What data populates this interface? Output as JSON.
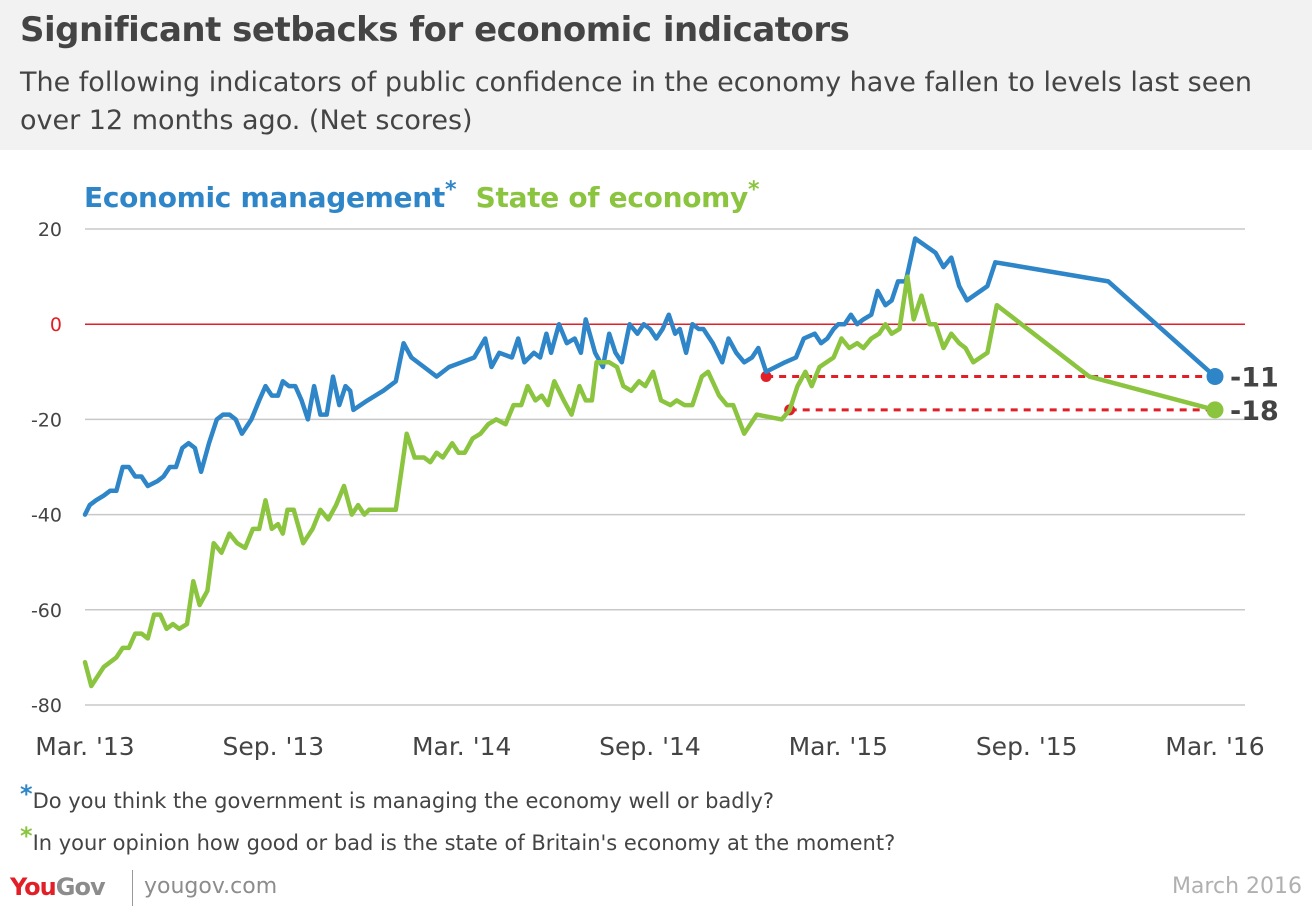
{
  "header": {
    "title": "Significant setbacks for economic indicators",
    "subtitle": "The following indicators of public confidence in the economy have fallen to levels last seen over 12 months ago. (Net scores)"
  },
  "legend": {
    "series1": "Economic management",
    "series2": "State of economy",
    "asterisk": "*"
  },
  "footnotes": [
    {
      "marker": "*",
      "text": "Do you think the government is managing the economy well or badly?",
      "color": "#2e86c8"
    },
    {
      "marker": "*",
      "text": "In your opinion how good or bad is the state of Britain's economy at the moment?",
      "color": "#8bc43f"
    }
  ],
  "footer": {
    "brand_you": "You",
    "brand_gov": "Gov",
    "url": "yougov.com",
    "date": "March 2016"
  },
  "colors": {
    "economic_management": "#2e86c8",
    "state_of_economy": "#8bc43f",
    "zero_line": "#e21e26",
    "reference": "#e21e26",
    "grid": "#c8c8c8"
  },
  "chart_data": {
    "type": "line",
    "title": "Significant setbacks for economic indicators",
    "xlabel": "",
    "ylabel": "Net score",
    "ylim": [
      -80,
      20
    ],
    "yticks": [
      20,
      0,
      -20,
      -40,
      -60,
      -80
    ],
    "x_unit": "months since Mar 2013",
    "xlim": [
      0,
      36
    ],
    "xticks": [
      {
        "x": 0,
        "label": "Mar. '13"
      },
      {
        "x": 6,
        "label": "Sep. '13"
      },
      {
        "x": 12,
        "label": "Mar. '14"
      },
      {
        "x": 18,
        "label": "Sep. '14"
      },
      {
        "x": 24,
        "label": "Mar. '15"
      },
      {
        "x": 30,
        "label": "Sep. '15"
      },
      {
        "x": 36,
        "label": "Mar. '16"
      }
    ],
    "grid": true,
    "zero_line": true,
    "series": [
      {
        "name": "Economic management",
        "color": "#2e86c8",
        "points": [
          [
            0,
            -40
          ],
          [
            0.15,
            -38
          ],
          [
            0.35,
            -37
          ],
          [
            0.6,
            -36
          ],
          [
            0.8,
            -35
          ],
          [
            1.0,
            -35
          ],
          [
            1.2,
            -30
          ],
          [
            1.4,
            -30
          ],
          [
            1.6,
            -32
          ],
          [
            1.8,
            -32
          ],
          [
            2.0,
            -34
          ],
          [
            2.3,
            -33
          ],
          [
            2.5,
            -32
          ],
          [
            2.7,
            -30
          ],
          [
            2.9,
            -30
          ],
          [
            3.1,
            -26
          ],
          [
            3.3,
            -25
          ],
          [
            3.5,
            -26
          ],
          [
            3.7,
            -31
          ],
          [
            3.95,
            -25
          ],
          [
            4.2,
            -20
          ],
          [
            4.4,
            -19
          ],
          [
            4.6,
            -19
          ],
          [
            4.8,
            -20
          ],
          [
            5.0,
            -23
          ],
          [
            5.3,
            -20
          ],
          [
            5.55,
            -16
          ],
          [
            5.75,
            -13
          ],
          [
            5.95,
            -15
          ],
          [
            6.15,
            -15
          ],
          [
            6.3,
            -12
          ],
          [
            6.5,
            -13
          ],
          [
            6.7,
            -13
          ],
          [
            6.9,
            -16
          ],
          [
            7.1,
            -20
          ],
          [
            7.3,
            -13
          ],
          [
            7.5,
            -19
          ],
          [
            7.7,
            -19
          ],
          [
            7.9,
            -11
          ],
          [
            8.1,
            -17
          ],
          [
            8.3,
            -13
          ],
          [
            8.45,
            -14
          ],
          [
            8.55,
            -18
          ],
          [
            9.0,
            -16
          ],
          [
            9.5,
            -14
          ],
          [
            9.9,
            -12
          ],
          [
            10.15,
            -4
          ],
          [
            10.4,
            -7
          ],
          [
            10.8,
            -9
          ],
          [
            11.2,
            -11
          ],
          [
            11.6,
            -9
          ],
          [
            12.0,
            -8
          ],
          [
            12.4,
            -7
          ],
          [
            12.75,
            -3
          ],
          [
            12.95,
            -9
          ],
          [
            13.2,
            -6
          ],
          [
            13.6,
            -7
          ],
          [
            13.8,
            -3
          ],
          [
            14.0,
            -8
          ],
          [
            14.3,
            -6
          ],
          [
            14.5,
            -7
          ],
          [
            14.7,
            -2
          ],
          [
            14.85,
            -6
          ],
          [
            15.1,
            0
          ],
          [
            15.35,
            -4
          ],
          [
            15.6,
            -3
          ],
          [
            15.8,
            -6
          ],
          [
            15.95,
            1
          ],
          [
            16.25,
            -6
          ],
          [
            16.5,
            -9
          ],
          [
            16.7,
            -2
          ],
          [
            16.9,
            -6
          ],
          [
            17.1,
            -8
          ],
          [
            17.35,
            0
          ],
          [
            17.6,
            -2
          ],
          [
            17.8,
            0
          ],
          [
            18.0,
            -1
          ],
          [
            18.2,
            -3
          ],
          [
            18.4,
            -1
          ],
          [
            18.6,
            2
          ],
          [
            18.8,
            -2
          ],
          [
            18.95,
            -1
          ],
          [
            19.15,
            -6
          ],
          [
            19.35,
            0
          ],
          [
            19.55,
            -1
          ],
          [
            19.7,
            -1
          ],
          [
            20.0,
            -4
          ],
          [
            20.3,
            -8
          ],
          [
            20.5,
            -3
          ],
          [
            20.75,
            -6
          ],
          [
            21.0,
            -8
          ],
          [
            21.25,
            -7
          ],
          [
            21.45,
            -5
          ],
          [
            21.7,
            -10
          ],
          [
            22.3,
            -8
          ],
          [
            22.65,
            -7
          ],
          [
            22.9,
            -3
          ],
          [
            23.25,
            -2
          ],
          [
            23.45,
            -4
          ],
          [
            23.65,
            -3
          ],
          [
            23.85,
            -1
          ],
          [
            24.0,
            0
          ],
          [
            24.2,
            0
          ],
          [
            24.4,
            2
          ],
          [
            24.6,
            0
          ],
          [
            24.8,
            1
          ],
          [
            25.05,
            2
          ],
          [
            25.25,
            7
          ],
          [
            25.5,
            4
          ],
          [
            25.7,
            5
          ],
          [
            25.9,
            9
          ],
          [
            26.15,
            9
          ],
          [
            26.45,
            18
          ],
          [
            27.1,
            15
          ],
          [
            27.35,
            12
          ],
          [
            27.6,
            14
          ],
          [
            27.85,
            8
          ],
          [
            28.1,
            5
          ],
          [
            28.75,
            8
          ],
          [
            29.0,
            13
          ],
          [
            32.6,
            9
          ],
          [
            36,
            -11
          ]
        ]
      },
      {
        "name": "State of economy",
        "color": "#8bc43f",
        "points": [
          [
            0,
            -71
          ],
          [
            0.2,
            -76
          ],
          [
            0.4,
            -74
          ],
          [
            0.6,
            -72
          ],
          [
            0.8,
            -71
          ],
          [
            1.0,
            -70
          ],
          [
            1.2,
            -68
          ],
          [
            1.4,
            -68
          ],
          [
            1.6,
            -65
          ],
          [
            1.8,
            -65
          ],
          [
            2.0,
            -66
          ],
          [
            2.2,
            -61
          ],
          [
            2.4,
            -61
          ],
          [
            2.6,
            -64
          ],
          [
            2.8,
            -63
          ],
          [
            3.0,
            -64
          ],
          [
            3.25,
            -63
          ],
          [
            3.45,
            -54
          ],
          [
            3.65,
            -59
          ],
          [
            3.9,
            -56
          ],
          [
            4.1,
            -46
          ],
          [
            4.35,
            -48
          ],
          [
            4.6,
            -44
          ],
          [
            4.85,
            -46
          ],
          [
            5.1,
            -47
          ],
          [
            5.35,
            -43
          ],
          [
            5.55,
            -43
          ],
          [
            5.75,
            -37
          ],
          [
            5.95,
            -43
          ],
          [
            6.15,
            -42
          ],
          [
            6.3,
            -44
          ],
          [
            6.45,
            -39
          ],
          [
            6.65,
            -39
          ],
          [
            6.95,
            -46
          ],
          [
            7.25,
            -43
          ],
          [
            7.5,
            -39
          ],
          [
            7.75,
            -41
          ],
          [
            8.0,
            -38
          ],
          [
            8.25,
            -34
          ],
          [
            8.5,
            -40
          ],
          [
            8.7,
            -38
          ],
          [
            8.9,
            -40
          ],
          [
            9.05,
            -39
          ],
          [
            9.9,
            -39
          ],
          [
            10.25,
            -23
          ],
          [
            10.5,
            -28
          ],
          [
            10.8,
            -28
          ],
          [
            11.0,
            -29
          ],
          [
            11.2,
            -27
          ],
          [
            11.4,
            -28
          ],
          [
            11.7,
            -25
          ],
          [
            11.9,
            -27
          ],
          [
            12.1,
            -27
          ],
          [
            12.35,
            -24
          ],
          [
            12.6,
            -23
          ],
          [
            12.85,
            -21
          ],
          [
            13.1,
            -20
          ],
          [
            13.4,
            -21
          ],
          [
            13.65,
            -17
          ],
          [
            13.9,
            -17
          ],
          [
            14.1,
            -13
          ],
          [
            14.35,
            -16
          ],
          [
            14.55,
            -15
          ],
          [
            14.75,
            -17
          ],
          [
            14.95,
            -12
          ],
          [
            15.25,
            -16
          ],
          [
            15.5,
            -19
          ],
          [
            15.75,
            -13
          ],
          [
            15.95,
            -16
          ],
          [
            16.15,
            -16
          ],
          [
            16.3,
            -8
          ],
          [
            16.7,
            -8
          ],
          [
            16.95,
            -9
          ],
          [
            17.15,
            -13
          ],
          [
            17.4,
            -14
          ],
          [
            17.65,
            -12
          ],
          [
            17.85,
            -13
          ],
          [
            18.1,
            -10
          ],
          [
            18.35,
            -16
          ],
          [
            18.65,
            -17
          ],
          [
            18.85,
            -16
          ],
          [
            19.1,
            -17
          ],
          [
            19.35,
            -17
          ],
          [
            19.65,
            -11
          ],
          [
            19.85,
            -10
          ],
          [
            20.2,
            -15
          ],
          [
            20.45,
            -17
          ],
          [
            20.65,
            -17
          ],
          [
            21.0,
            -23
          ],
          [
            21.4,
            -19
          ],
          [
            22.2,
            -20
          ],
          [
            22.45,
            -18
          ],
          [
            22.7,
            -13
          ],
          [
            22.95,
            -10
          ],
          [
            23.15,
            -13
          ],
          [
            23.4,
            -9
          ],
          [
            23.85,
            -7
          ],
          [
            24.1,
            -3
          ],
          [
            24.35,
            -5
          ],
          [
            24.6,
            -4
          ],
          [
            24.8,
            -5
          ],
          [
            25.05,
            -3
          ],
          [
            25.3,
            -2
          ],
          [
            25.5,
            0
          ],
          [
            25.7,
            -2
          ],
          [
            25.95,
            -1
          ],
          [
            26.2,
            10
          ],
          [
            26.4,
            1
          ],
          [
            26.65,
            6
          ],
          [
            26.9,
            0
          ],
          [
            27.1,
            0
          ],
          [
            27.35,
            -5
          ],
          [
            27.6,
            -2
          ],
          [
            27.85,
            -4
          ],
          [
            28.05,
            -5
          ],
          [
            28.3,
            -8
          ],
          [
            28.75,
            -6
          ],
          [
            29.05,
            4
          ],
          [
            32.0,
            -11
          ],
          [
            36,
            -18
          ]
        ]
      }
    ],
    "annotations": [
      {
        "series": "Economic management",
        "final_value": -11,
        "label": "-11",
        "reference_from_x": 21.7,
        "reference_value": -11
      },
      {
        "series": "State of economy",
        "final_value": -18,
        "label": "-18",
        "reference_from_x": 22.45,
        "reference_value": -18
      }
    ]
  }
}
